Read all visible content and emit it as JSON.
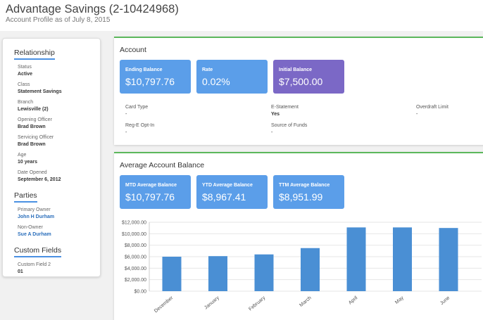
{
  "header": {
    "title": "Advantage Savings (2-10424968)",
    "subtitle": "Account Profile as of July 8, 2015"
  },
  "sidebar": {
    "relationship_heading": "Relationship",
    "relationship_fields": [
      {
        "label": "Status",
        "value": "Active"
      },
      {
        "label": "Class",
        "value": "Statement Savings"
      },
      {
        "label": "Branch",
        "value": "Lewisville (2)"
      },
      {
        "label": "Opening Officer",
        "value": "Brad Brown"
      },
      {
        "label": "Servicing Officer",
        "value": "Brad Brown"
      },
      {
        "label": "Age",
        "value": "10 years"
      },
      {
        "label": "Date Opened",
        "value": "September 6, 2012"
      }
    ],
    "parties_heading": "Parties",
    "parties_fields": [
      {
        "label": "Primary Owner",
        "value": "John H Durham"
      },
      {
        "label": "Non-Owner",
        "value": "Sue A Durham"
      }
    ],
    "custom_heading": "Custom Fields",
    "custom_fields": [
      {
        "label": "Custom Field 2",
        "value": "01"
      }
    ]
  },
  "account": {
    "title": "Account",
    "tiles": [
      {
        "label": "Ending Balance",
        "value": "$10,797.76",
        "color": "#5b9ee9"
      },
      {
        "label": "Rate",
        "value": "0.02%",
        "color": "#5b9ee9"
      },
      {
        "label": "Initial Balance",
        "value": "$7,500.00",
        "color": "#7b68c6"
      }
    ],
    "info": [
      {
        "label": "Card Type",
        "value": "-"
      },
      {
        "label": "E-Statement",
        "value": "Yes"
      },
      {
        "label": "Overdraft Limit",
        "value": "-"
      },
      {
        "label": "Reg-E Opt-In",
        "value": "-"
      },
      {
        "label": "Source of Funds",
        "value": "-"
      }
    ]
  },
  "average": {
    "title": "Average Account Balance",
    "tiles": [
      {
        "label": "MTD Average Balance",
        "value": "$10,797.76"
      },
      {
        "label": "YTD Average Balance",
        "value": "$8,967.41"
      },
      {
        "label": "TTM Average Balance",
        "value": "$8,951.99"
      }
    ]
  },
  "chart_data": {
    "type": "bar",
    "categories": [
      "December",
      "January",
      "February",
      "March",
      "April",
      "May",
      "June"
    ],
    "values": [
      6000,
      6100,
      6400,
      7500,
      11100,
      11100,
      11000
    ],
    "ylim": [
      0,
      12000
    ],
    "yticks": [
      "$0.00",
      "$2,000.00",
      "$4,000.00",
      "$6,000.00",
      "$8,000.00",
      "$10,000.00",
      "$12,000.00"
    ],
    "bar_color": "#4a8fd4",
    "grid": true
  }
}
